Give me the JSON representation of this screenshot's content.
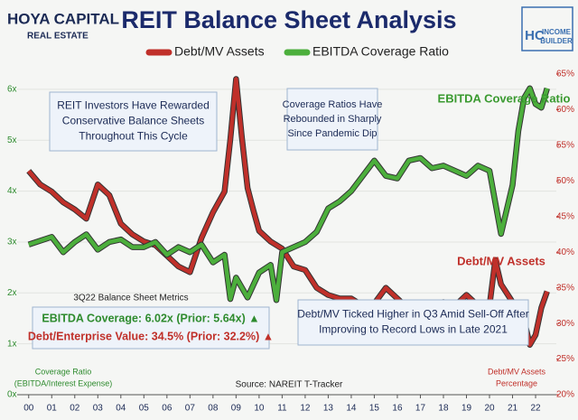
{
  "logo": {
    "name": "HOYA CAPITAL",
    "sub": "REAL ESTATE"
  },
  "logo2": {
    "mark": "HC",
    "name": [
      "INCOME",
      "BUILDER"
    ]
  },
  "chart_data": {
    "type": "line",
    "title": "REIT Balance Sheet Analysis",
    "xlim": [
      -0.5,
      22.9
    ],
    "xticks": [
      {
        "value": 0,
        "label": "00"
      },
      {
        "value": 1,
        "label": "01"
      },
      {
        "value": 2,
        "label": "02"
      },
      {
        "value": 3,
        "label": "03"
      },
      {
        "value": 4,
        "label": "04"
      },
      {
        "value": 5,
        "label": "05"
      },
      {
        "value": 6,
        "label": "06"
      },
      {
        "value": 7,
        "label": "07"
      },
      {
        "value": 8,
        "label": "08"
      },
      {
        "value": 9,
        "label": "09"
      },
      {
        "value": 10,
        "label": "10"
      },
      {
        "value": 11,
        "label": "11"
      },
      {
        "value": 12,
        "label": "12"
      },
      {
        "value": 13,
        "label": "13"
      },
      {
        "value": 14,
        "label": "14"
      },
      {
        "value": 15,
        "label": "15"
      },
      {
        "value": 16,
        "label": "16"
      },
      {
        "value": 17,
        "label": "17"
      },
      {
        "value": 18,
        "label": "18"
      },
      {
        "value": 19,
        "label": "19"
      },
      {
        "value": 20,
        "label": "20"
      },
      {
        "value": 21,
        "label": "21"
      },
      {
        "value": 22,
        "label": "22"
      }
    ],
    "ylim": [
      0,
      6.3
    ],
    "yticks": [
      {
        "value": 0,
        "label": "0x"
      },
      {
        "value": 1,
        "label": "1x"
      },
      {
        "value": 2,
        "label": "2x"
      },
      {
        "value": 3,
        "label": "3x"
      },
      {
        "value": 4,
        "label": "4x"
      },
      {
        "value": 5,
        "label": "5x"
      },
      {
        "value": 6,
        "label": "6x"
      }
    ],
    "y2lim": [
      20,
      65
    ],
    "y2ticks": [
      {
        "value": 20,
        "label": "20%"
      },
      {
        "value": 25,
        "label": "25%"
      },
      {
        "value": 30,
        "label": "30%"
      },
      {
        "value": 35,
        "label": "35%"
      },
      {
        "value": 40,
        "label": "40%"
      },
      {
        "value": 45,
        "label": "45%"
      },
      {
        "value": 50,
        "label": "50%"
      },
      {
        "value": 55,
        "label": "55%"
      },
      {
        "value": 60,
        "label": "60%"
      },
      {
        "value": 65,
        "label": "65%"
      }
    ],
    "series": [
      {
        "name": "Debt/MV Assets",
        "color": "#c0302a",
        "axis": "y2",
        "label": "Debt/MV Assets",
        "x": [
          0,
          0.5,
          1,
          1.5,
          2,
          2.5,
          3,
          3.5,
          4,
          4.5,
          5,
          5.5,
          6,
          6.5,
          7,
          7.5,
          8,
          8.5,
          8.75,
          9,
          9.25,
          9.5,
          9.75,
          10,
          10.5,
          11,
          11.5,
          12,
          12.5,
          13,
          13.5,
          14,
          14.5,
          15,
          15.5,
          16,
          16.5,
          17,
          17.5,
          18,
          18.5,
          19,
          19.5,
          20,
          20.25,
          20.5,
          21,
          21.5,
          21.75,
          22,
          22.25,
          22.5
        ],
        "values": [
          51.4,
          49.5,
          48.5,
          47,
          46,
          44.7,
          49.5,
          48,
          44,
          42.5,
          41.5,
          41,
          39.5,
          38,
          37.2,
          42,
          45.6,
          48.5,
          55.8,
          64.3,
          56.2,
          49,
          45.9,
          43,
          41.5,
          40.5,
          38,
          37.5,
          35,
          34,
          33.5,
          33.5,
          32.5,
          32.8,
          35,
          33.5,
          32,
          32.3,
          32.5,
          33,
          32.5,
          34,
          32.5,
          32.5,
          38.9,
          35.5,
          33,
          30.5,
          27,
          28.4,
          32.2,
          34.5
        ]
      },
      {
        "name": "EBITDA Coverage Ratio",
        "color": "#4caf3c",
        "label": "EBITDA Coverage Ratio",
        "x": [
          0,
          1,
          1.5,
          2,
          2.5,
          3,
          3.5,
          4,
          4.5,
          5,
          5.5,
          6,
          6.5,
          7,
          7.5,
          8,
          8.5,
          8.75,
          9,
          9.5,
          10,
          10.5,
          10.75,
          11,
          11.5,
          12,
          12.5,
          13,
          13.5,
          14,
          14.5,
          15,
          15.5,
          16,
          16.5,
          17,
          17.5,
          18,
          18.5,
          19,
          19.5,
          20,
          20.5,
          20.75,
          21,
          21.25,
          21.5,
          21.75,
          22,
          22.25,
          22.5
        ],
        "values": [
          2.95,
          3.1,
          2.8,
          3,
          3.15,
          2.85,
          3,
          3.05,
          2.9,
          2.9,
          3,
          2.75,
          2.9,
          2.8,
          2.95,
          2.6,
          2.75,
          1.88,
          2.3,
          1.91,
          2.4,
          2.55,
          1.86,
          2.8,
          2.9,
          3,
          3.2,
          3.66,
          3.8,
          4,
          4.3,
          4.6,
          4.3,
          4.25,
          4.6,
          4.65,
          4.45,
          4.5,
          4.4,
          4.3,
          4.5,
          4.4,
          3.16,
          3.64,
          4.12,
          5.18,
          5.83,
          6.02,
          5.71,
          5.64,
          6.02
        ]
      }
    ],
    "annotations": [
      [
        "REIT Investors Have Rewarded",
        "Conservative Balance Sheets",
        "Throughout This Cycle"
      ],
      [
        "Coverage Ratios Have",
        "Rebounded in Sharply",
        "Since Pandemic Dip"
      ],
      [
        "Debt/MV Ticked Higher in Q3 Amid Sell-Off After",
        "Improving to Record Lows in Late 2021"
      ]
    ],
    "metrics": {
      "title": "3Q22 Balance Sheet Metrics",
      "lines": [
        "EBITDA Coverage: 6.02x (Prior: 5.64x) ▲",
        "Debt/Enterprise Value: 34.5% (Prior: 32.2%) ▲"
      ]
    },
    "y_label": [
      "Coverage Ratio",
      "(EBITDA/Interest Expense)"
    ],
    "y2_label": [
      "Debt/MV Assets",
      "Percentage"
    ],
    "source": "Source: NAREIT T-Tracker"
  }
}
